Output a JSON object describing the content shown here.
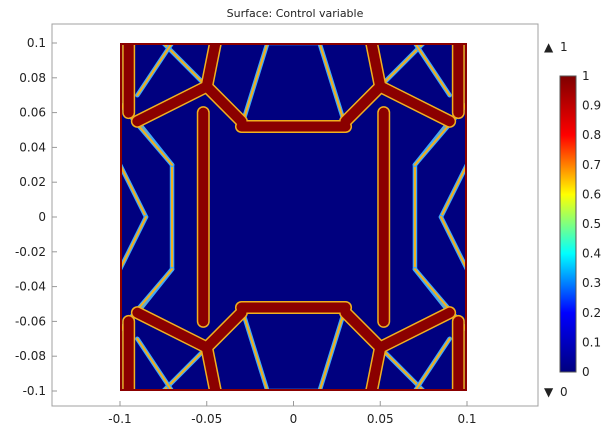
{
  "chart_data": {
    "type": "heatmap",
    "title": "Surface: Control variable",
    "xlabel": "",
    "ylabel": "",
    "xlim": [
      -0.1,
      0.1
    ],
    "ylim": [
      -0.1,
      0.1
    ],
    "x_ticks": [
      "-0.1",
      "-0.05",
      "0",
      "0.05",
      "0.1"
    ],
    "y_ticks": [
      "0.1",
      "0.08",
      "0.06",
      "0.04",
      "0.02",
      "0",
      "-0.02",
      "-0.04",
      "-0.06",
      "-0.08",
      "-0.1"
    ],
    "colorbar": {
      "range": [
        0,
        1
      ],
      "ticks": [
        "1",
        "0.9",
        "0.8",
        "0.7",
        "0.6",
        "0.5",
        "0.4",
        "0.3",
        "0.2",
        "0.1",
        "0"
      ],
      "max_label": "1",
      "min_label": "0",
      "colormap": [
        "#00007f",
        "#0000ff",
        "#00ffff",
        "#ffff00",
        "#ff0000",
        "#7f0000"
      ]
    },
    "background_value": 0,
    "frame_value": 1,
    "colors": {
      "low": "#00007f",
      "high": "#8b0000",
      "edge": "#f0b020",
      "axis": "#999999"
    },
    "structures": {
      "thick_members": [
        {
          "x1": -0.052,
          "y1": 0.06,
          "x2": -0.052,
          "y2": -0.06,
          "value": 1
        },
        {
          "x1": 0.052,
          "y1": 0.06,
          "x2": 0.052,
          "y2": -0.06,
          "value": 1
        },
        {
          "x1": -0.03,
          "y1": 0.052,
          "x2": 0.03,
          "y2": 0.052,
          "value": 1
        },
        {
          "x1": -0.03,
          "y1": -0.052,
          "x2": 0.03,
          "y2": -0.052,
          "value": 1
        },
        {
          "x1": -0.05,
          "y1": 0.075,
          "x2": -0.03,
          "y2": 0.055,
          "value": 1
        },
        {
          "x1": 0.05,
          "y1": 0.075,
          "x2": 0.03,
          "y2": 0.055,
          "value": 1
        },
        {
          "x1": -0.05,
          "y1": -0.075,
          "x2": -0.03,
          "y2": -0.055,
          "value": 1
        },
        {
          "x1": 0.05,
          "y1": -0.075,
          "x2": 0.03,
          "y2": -0.055,
          "value": 1
        },
        {
          "x1": -0.05,
          "y1": 0.075,
          "x2": -0.09,
          "y2": 0.055,
          "value": 1
        },
        {
          "x1": 0.05,
          "y1": 0.075,
          "x2": 0.09,
          "y2": 0.055,
          "value": 1
        },
        {
          "x1": -0.05,
          "y1": -0.075,
          "x2": -0.09,
          "y2": -0.055,
          "value": 1
        },
        {
          "x1": 0.05,
          "y1": -0.075,
          "x2": 0.09,
          "y2": -0.055,
          "value": 1
        },
        {
          "x1": -0.05,
          "y1": 0.075,
          "x2": -0.045,
          "y2": 0.1,
          "value": 1
        },
        {
          "x1": 0.05,
          "y1": 0.075,
          "x2": 0.045,
          "y2": 0.1,
          "value": 1
        },
        {
          "x1": -0.05,
          "y1": -0.075,
          "x2": -0.045,
          "y2": -0.1,
          "value": 1
        },
        {
          "x1": 0.05,
          "y1": -0.075,
          "x2": 0.045,
          "y2": -0.1,
          "value": 1
        },
        {
          "x1": -0.095,
          "y1": 0.1,
          "x2": -0.095,
          "y2": 0.06,
          "value": 1
        },
        {
          "x1": 0.095,
          "y1": 0.1,
          "x2": 0.095,
          "y2": 0.06,
          "value": 1
        },
        {
          "x1": -0.095,
          "y1": -0.1,
          "x2": -0.095,
          "y2": -0.06,
          "value": 1
        },
        {
          "x1": 0.095,
          "y1": -0.1,
          "x2": 0.095,
          "y2": -0.06,
          "value": 1
        }
      ],
      "thin_members": [
        {
          "x1": -0.03,
          "y1": 0.052,
          "x2": -0.015,
          "y2": 0.1
        },
        {
          "x1": 0.03,
          "y1": 0.052,
          "x2": 0.015,
          "y2": 0.1
        },
        {
          "x1": -0.03,
          "y1": -0.052,
          "x2": -0.015,
          "y2": -0.1
        },
        {
          "x1": 0.03,
          "y1": -0.052,
          "x2": 0.015,
          "y2": -0.1
        },
        {
          "x1": -0.05,
          "y1": 0.075,
          "x2": -0.075,
          "y2": 0.1
        },
        {
          "x1": 0.05,
          "y1": 0.075,
          "x2": 0.075,
          "y2": 0.1
        },
        {
          "x1": -0.05,
          "y1": -0.075,
          "x2": -0.075,
          "y2": -0.1
        },
        {
          "x1": 0.05,
          "y1": -0.075,
          "x2": 0.075,
          "y2": -0.1
        },
        {
          "x1": -0.09,
          "y1": 0.055,
          "x2": -0.07,
          "y2": 0.03
        },
        {
          "x1": 0.09,
          "y1": 0.055,
          "x2": 0.07,
          "y2": 0.03
        },
        {
          "x1": -0.09,
          "y1": -0.055,
          "x2": -0.07,
          "y2": -0.03
        },
        {
          "x1": 0.09,
          "y1": -0.055,
          "x2": 0.07,
          "y2": -0.03
        },
        {
          "x1": -0.07,
          "y1": 0.03,
          "x2": -0.07,
          "y2": -0.03
        },
        {
          "x1": 0.07,
          "y1": 0.03,
          "x2": 0.07,
          "y2": -0.03
        },
        {
          "x1": -0.1,
          "y1": 0.03,
          "x2": -0.085,
          "y2": 0.0
        },
        {
          "x1": -0.085,
          "y1": 0.0,
          "x2": -0.1,
          "y2": -0.03
        },
        {
          "x1": 0.1,
          "y1": 0.03,
          "x2": 0.085,
          "y2": 0.0
        },
        {
          "x1": 0.085,
          "y1": 0.0,
          "x2": 0.1,
          "y2": -0.03
        },
        {
          "x1": -0.1,
          "y1": 0.065,
          "x2": -0.07,
          "y2": 0.03
        },
        {
          "x1": 0.1,
          "y1": 0.065,
          "x2": 0.07,
          "y2": 0.03
        },
        {
          "x1": -0.1,
          "y1": -0.065,
          "x2": -0.07,
          "y2": -0.03
        },
        {
          "x1": 0.1,
          "y1": -0.065,
          "x2": 0.07,
          "y2": -0.03
        },
        {
          "x1": -0.07,
          "y1": 0.1,
          "x2": -0.09,
          "y2": 0.07
        },
        {
          "x1": 0.07,
          "y1": 0.1,
          "x2": 0.09,
          "y2": 0.07
        },
        {
          "x1": -0.07,
          "y1": -0.1,
          "x2": -0.09,
          "y2": -0.07
        },
        {
          "x1": 0.07,
          "y1": -0.1,
          "x2": 0.09,
          "y2": -0.07
        },
        {
          "x1": -0.015,
          "y1": 0.1,
          "x2": 0.015,
          "y2": 0.1
        },
        {
          "x1": -0.015,
          "y1": -0.1,
          "x2": 0.015,
          "y2": -0.1
        }
      ]
    }
  }
}
